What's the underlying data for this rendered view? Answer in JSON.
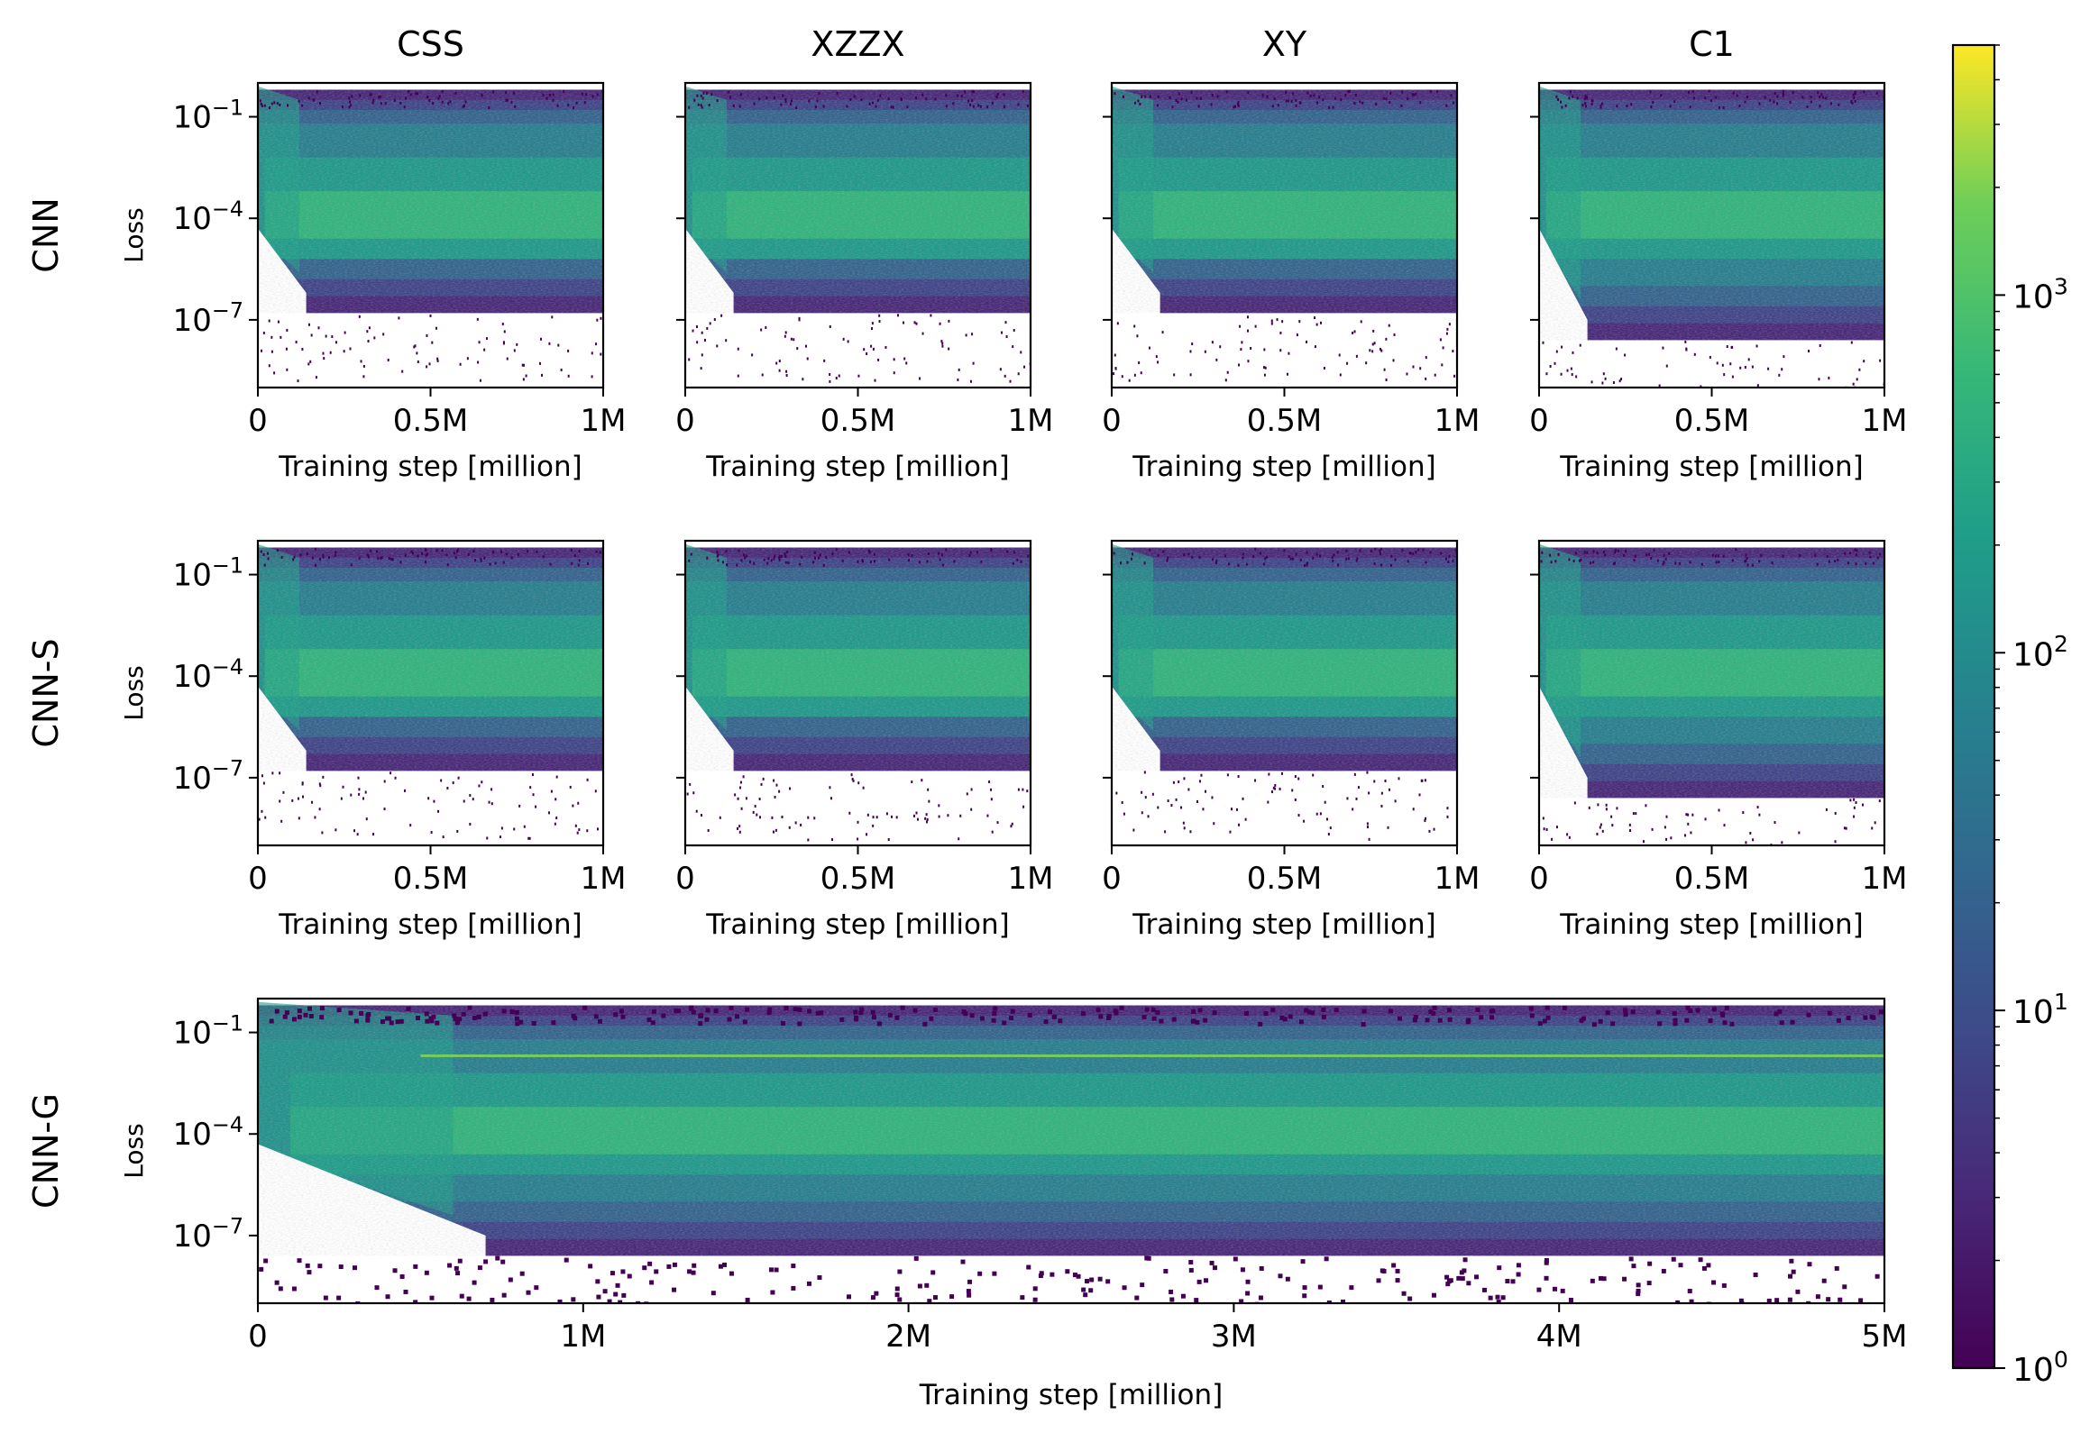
{
  "figure": {
    "column_titles": [
      "CSS",
      "XZZX",
      "XY",
      "C1"
    ],
    "row_labels": [
      "CNN",
      "CNN-S",
      "CNN-G"
    ],
    "ylabel": "Loss",
    "xlabel": "Training step [million]"
  },
  "colorbar": {
    "scale": "log",
    "min": 1,
    "max": 5000,
    "colormap": "viridis",
    "ticks": [
      {
        "base": "10",
        "exp": "0",
        "value": 1
      },
      {
        "base": "10",
        "exp": "1",
        "value": 10
      },
      {
        "base": "10",
        "exp": "2",
        "value": 100
      },
      {
        "base": "10",
        "exp": "3",
        "value": 1000
      }
    ]
  },
  "chart_data": [
    {
      "type": "heatmap",
      "panel": "CNN-CSS",
      "model": "CNN",
      "code": "CSS",
      "xlabel": "Training step [million]",
      "ylabel": "Loss",
      "xlim": [
        0,
        1
      ],
      "xticks": [
        {
          "v": 0,
          "label": "0"
        },
        {
          "v": 0.5,
          "label": "0.5M"
        },
        {
          "v": 1,
          "label": "1M"
        }
      ],
      "ylim_log10": [
        -9,
        0
      ],
      "yticks": [
        {
          "exp": "-1",
          "log": -1
        },
        {
          "exp": "-4",
          "log": -4
        },
        {
          "exp": "-7",
          "log": -7
        }
      ],
      "yscale": "log"
    },
    {
      "type": "heatmap",
      "panel": "CNN-XZZX",
      "model": "CNN",
      "code": "XZZX",
      "xlabel": "Training step [million]",
      "xlim": [
        0,
        1
      ],
      "xticks": [
        {
          "v": 0,
          "label": "0"
        },
        {
          "v": 0.5,
          "label": "0.5M"
        },
        {
          "v": 1,
          "label": "1M"
        }
      ],
      "ylim_log10": [
        -9,
        0
      ],
      "yscale": "log"
    },
    {
      "type": "heatmap",
      "panel": "CNN-XY",
      "model": "CNN",
      "code": "XY",
      "xlabel": "Training step [million]",
      "xlim": [
        0,
        1
      ],
      "xticks": [
        {
          "v": 0,
          "label": "0"
        },
        {
          "v": 0.5,
          "label": "0.5M"
        },
        {
          "v": 1,
          "label": "1M"
        }
      ],
      "ylim_log10": [
        -9,
        0
      ],
      "yscale": "log"
    },
    {
      "type": "heatmap",
      "panel": "CNN-C1",
      "model": "CNN",
      "code": "C1",
      "xlabel": "Training step [million]",
      "xlim": [
        0,
        1
      ],
      "xticks": [
        {
          "v": 0,
          "label": "0"
        },
        {
          "v": 0.5,
          "label": "0.5M"
        },
        {
          "v": 1,
          "label": "1M"
        }
      ],
      "ylim_log10": [
        -9,
        0
      ],
      "yscale": "log"
    },
    {
      "type": "heatmap",
      "panel": "CNN-S-CSS",
      "model": "CNN-S",
      "code": "CSS",
      "xlabel": "Training step [million]",
      "ylabel": "Loss",
      "xlim": [
        0,
        1
      ],
      "xticks": [
        {
          "v": 0,
          "label": "0"
        },
        {
          "v": 0.5,
          "label": "0.5M"
        },
        {
          "v": 1,
          "label": "1M"
        }
      ],
      "ylim_log10": [
        -9,
        0
      ],
      "yticks": [
        {
          "exp": "-1",
          "log": -1
        },
        {
          "exp": "-4",
          "log": -4
        },
        {
          "exp": "-7",
          "log": -7
        }
      ],
      "yscale": "log"
    },
    {
      "type": "heatmap",
      "panel": "CNN-S-XZZX",
      "model": "CNN-S",
      "code": "XZZX",
      "xlabel": "Training step [million]",
      "xlim": [
        0,
        1
      ],
      "xticks": [
        {
          "v": 0,
          "label": "0"
        },
        {
          "v": 0.5,
          "label": "0.5M"
        },
        {
          "v": 1,
          "label": "1M"
        }
      ],
      "ylim_log10": [
        -9,
        0
      ],
      "yscale": "log"
    },
    {
      "type": "heatmap",
      "panel": "CNN-S-XY",
      "model": "CNN-S",
      "code": "XY",
      "xlabel": "Training step [million]",
      "xlim": [
        0,
        1
      ],
      "xticks": [
        {
          "v": 0,
          "label": "0"
        },
        {
          "v": 0.5,
          "label": "0.5M"
        },
        {
          "v": 1,
          "label": "1M"
        }
      ],
      "ylim_log10": [
        -9,
        0
      ],
      "yscale": "log"
    },
    {
      "type": "heatmap",
      "panel": "CNN-S-C1",
      "model": "CNN-S",
      "code": "C1",
      "xlabel": "Training step [million]",
      "xlim": [
        0,
        1
      ],
      "xticks": [
        {
          "v": 0,
          "label": "0"
        },
        {
          "v": 0.5,
          "label": "0.5M"
        },
        {
          "v": 1,
          "label": "1M"
        }
      ],
      "ylim_log10": [
        -9,
        0
      ],
      "yscale": "log"
    },
    {
      "type": "heatmap",
      "panel": "CNN-G",
      "model": "CNN-G",
      "xlabel": "Training step [million]",
      "ylabel": "Loss",
      "xlim": [
        0,
        5
      ],
      "xticks": [
        {
          "v": 0,
          "label": "0"
        },
        {
          "v": 1,
          "label": "1M"
        },
        {
          "v": 2,
          "label": "2M"
        },
        {
          "v": 3,
          "label": "3M"
        },
        {
          "v": 4,
          "label": "4M"
        },
        {
          "v": 5,
          "label": "5M"
        }
      ],
      "ylim_log10": [
        -9,
        0
      ],
      "yticks": [
        {
          "exp": "-1",
          "log": -1
        },
        {
          "exp": "-4",
          "log": -4
        },
        {
          "exp": "-7",
          "log": -7
        }
      ],
      "yscale": "log"
    }
  ]
}
